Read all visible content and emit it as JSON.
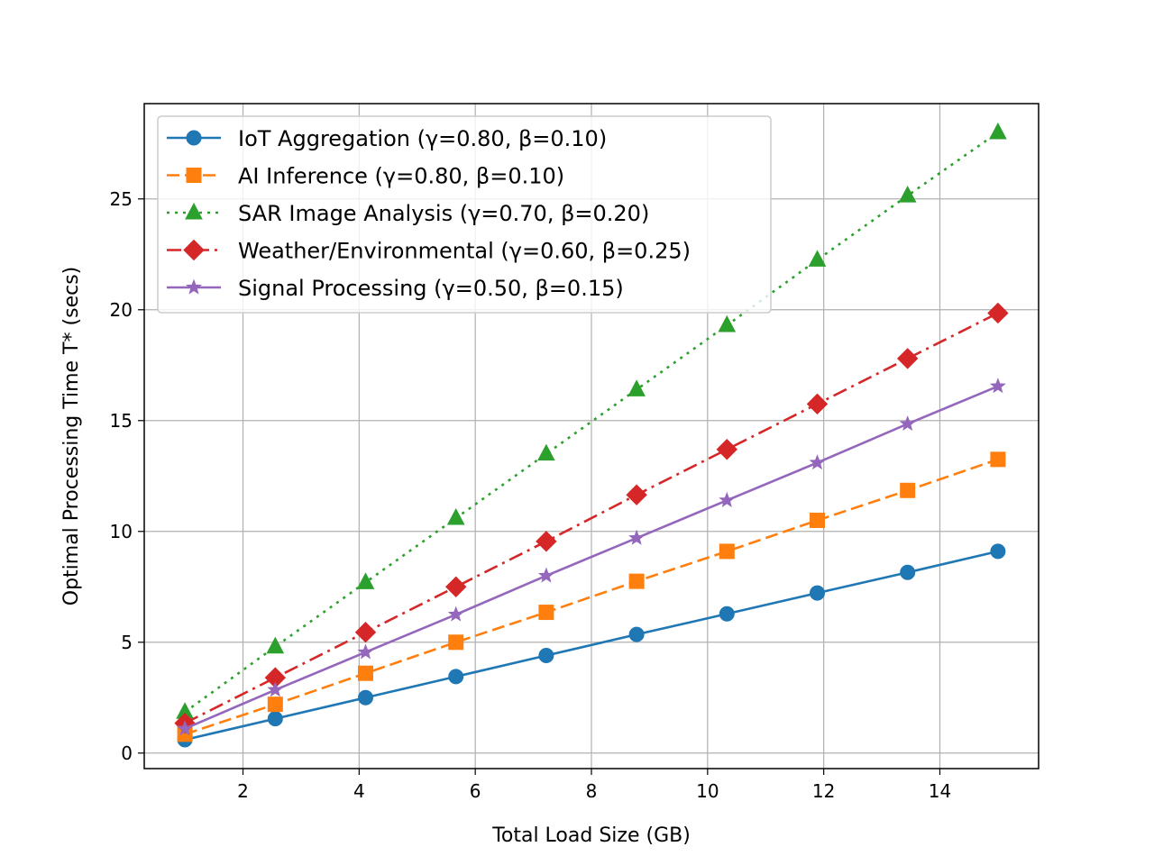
{
  "chart_data": {
    "type": "line",
    "title": "",
    "xlabel": "Total Load Size (GB)",
    "ylabel": "Optimal Processing Time T* (secs)",
    "xlim": [
      0.3,
      15.7
    ],
    "ylim": [
      -0.7,
      29.3
    ],
    "xticks": [
      2,
      4,
      6,
      8,
      10,
      12,
      14
    ],
    "yticks": [
      0,
      5,
      10,
      15,
      20,
      25
    ],
    "grid": true,
    "legend_position": "top-left",
    "x": [
      1.0,
      2.556,
      4.111,
      5.667,
      7.222,
      8.778,
      10.333,
      11.889,
      13.444,
      15.0
    ],
    "series": [
      {
        "name": "IoT Aggregation (γ=0.80, β=0.10)",
        "color": "#1f77b4",
        "marker": "circle",
        "linestyle": "solid",
        "values": [
          0.6,
          1.55,
          2.5,
          3.45,
          4.4,
          5.35,
          6.28,
          7.22,
          8.15,
          9.1
        ]
      },
      {
        "name": "AI Inference (γ=0.80, β=0.10)",
        "color": "#ff7f0e",
        "marker": "square",
        "linestyle": "dashed",
        "values": [
          0.85,
          2.2,
          3.6,
          5.0,
          6.35,
          7.75,
          9.1,
          10.5,
          11.85,
          13.25
        ]
      },
      {
        "name": "SAR Image Analysis (γ=0.70, β=0.20)",
        "color": "#2ca02c",
        "marker": "triangle",
        "linestyle": "dotted",
        "values": [
          1.85,
          4.8,
          7.7,
          10.6,
          13.5,
          16.4,
          19.3,
          22.25,
          25.15,
          28.0
        ]
      },
      {
        "name": "Weather/Environmental (γ=0.60, β=0.25)",
        "color": "#d62728",
        "marker": "diamond",
        "linestyle": "dashdot",
        "values": [
          1.35,
          3.4,
          5.45,
          7.5,
          9.55,
          11.65,
          13.7,
          15.75,
          17.8,
          19.85
        ]
      },
      {
        "name": "Signal Processing (γ=0.50, β=0.15)",
        "color": "#9467bd",
        "marker": "star",
        "linestyle": "solid",
        "values": [
          1.1,
          2.85,
          4.55,
          6.25,
          8.0,
          9.7,
          11.4,
          13.1,
          14.85,
          16.55
        ]
      }
    ]
  }
}
